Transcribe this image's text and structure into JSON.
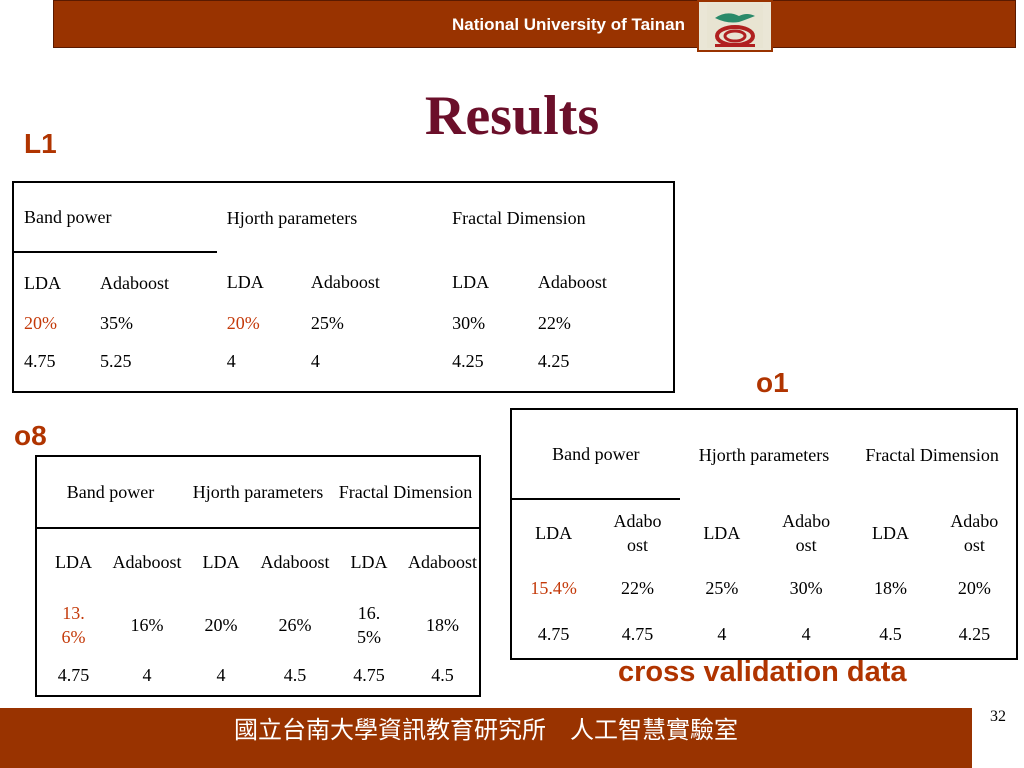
{
  "header": {
    "title": "National University of Tainan"
  },
  "slide_title": "Results",
  "labels": {
    "l1": "L1",
    "o8": "o8",
    "o1": "o1",
    "cross_validation": "cross validation data"
  },
  "tables": {
    "l1": {
      "groups": [
        "Band power",
        "Hjorth parameters",
        "Fractal Dimension"
      ],
      "methods": [
        "LDA",
        "Adaboost",
        "LDA",
        "Adaboost",
        "LDA",
        "Adaboost"
      ],
      "error_rates": [
        "20%",
        "35%",
        "20%",
        "25%",
        "30%",
        "22%"
      ],
      "values": [
        "4.75",
        "5.25",
        "4",
        "4",
        "4.25",
        "4.25"
      ]
    },
    "o8": {
      "groups": [
        "Band power",
        "Hjorth parameters",
        "Fractal Dimension"
      ],
      "methods": [
        "LDA",
        "Adaboost",
        "LDA",
        "Adaboost",
        "LDA",
        "Adaboost"
      ],
      "error_rates": [
        "13.6%",
        "16%",
        "20%",
        "26%",
        "16.5%",
        "18%"
      ],
      "values": [
        "4.75",
        "4",
        "4",
        "4.5",
        "4.75",
        "4.5"
      ]
    },
    "o1": {
      "groups": [
        "Band power",
        "Hjorth parameters",
        "Fractal Dimension"
      ],
      "methods": [
        "LDA",
        "Adaboost",
        "LDA",
        "Adaboost",
        "LDA",
        "Adaboost"
      ],
      "error_rates": [
        "15.4%",
        "22%",
        "25%",
        "30%",
        "18%",
        "20%"
      ],
      "values": [
        "4.75",
        "4.75",
        "4",
        "4",
        "4.5",
        "4.25"
      ]
    }
  },
  "footer": {
    "text": "國立台南大學資訊教育研究所　人工智慧實驗室",
    "page_number": "32"
  },
  "colors": {
    "bar": "#993300",
    "title": "#6b0f2a",
    "label": "#b03400",
    "highlight": "#c43a0a"
  }
}
